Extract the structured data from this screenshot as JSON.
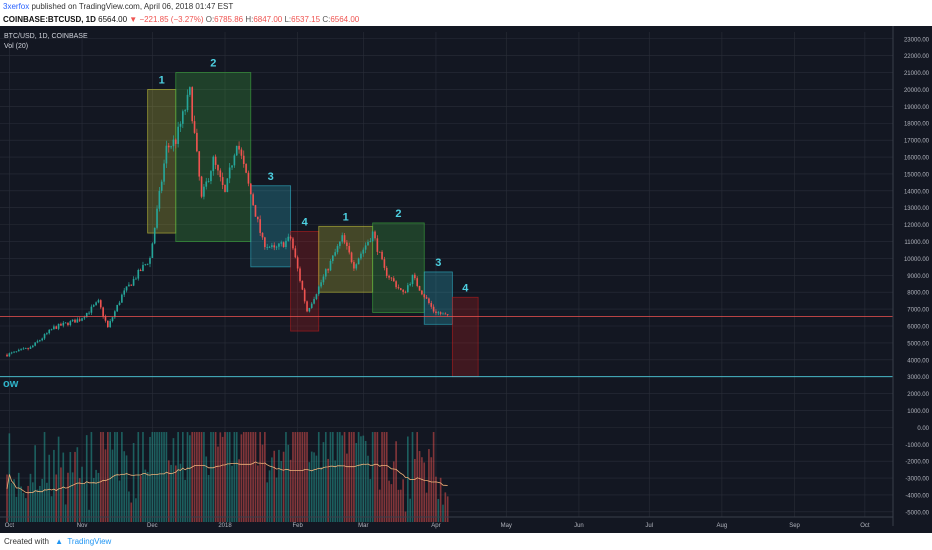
{
  "header": {
    "author": "3xerfox",
    "published_text": "published on TradingView.com, April 06, 2018 01:47 EST"
  },
  "quote": {
    "symbol": "COINBASE:BTCUSD, 1D",
    "last": "6564.00",
    "change": "▼ −221.85 (−3.27%)",
    "open_label": "O:",
    "open": "6785.86",
    "high_label": "H:",
    "high": "6847.00",
    "low_label": "L:",
    "low": "6537.15",
    "close_label": "C:",
    "close": "6564.00"
  },
  "legend": {
    "pair": "BTC/USD, 1D, COINBASE",
    "volume": "Vol (20)",
    "side_label": "ow"
  },
  "footer": {
    "created_with": "Created with",
    "brand": "TradingView"
  },
  "colors": {
    "background": "#131722",
    "up": "#26a69a",
    "down": "#ef5350",
    "grid": "#2a2e39",
    "phase1": "#c5c53a",
    "phase2": "#3fae3f",
    "phase3": "#2fb3c9",
    "phase4": "#b71c1c",
    "price_line": "#ef5350",
    "support_line": "#4dd0e1"
  },
  "chart_data": {
    "type": "candlestick",
    "symbol": "BTC/USD",
    "x_tick_labels": [
      "Oct",
      "Nov",
      "Dec",
      "2018",
      "Feb",
      "Mar",
      "Apr",
      "May",
      "Jun",
      "Jul",
      "Aug",
      "Sep",
      "Oct"
    ],
    "y_ticks": [
      "23000.00",
      "22000.00",
      "21000.00",
      "20000.00",
      "19000.00",
      "18000.00",
      "17000.00",
      "16000.00",
      "15000.00",
      "14000.00",
      "13000.00",
      "12000.00",
      "11000.00",
      "10000.00",
      "9000.00",
      "8000.00",
      "7000.00",
      "6000.00",
      "5000.00",
      "4000.00",
      "3000.00",
      "2000.00",
      "1000.00",
      "0.00",
      "-1000.00",
      "-2000.00",
      "-3000.00",
      "-4000.00",
      "-5000.00"
    ],
    "y_range": [
      -5600,
      23400
    ],
    "last_price": {
      "value": 6564,
      "label": "6564.00"
    },
    "support_level": {
      "value": 3000,
      "label": "3000.00"
    },
    "phases": [
      {
        "label": "1",
        "color_key": "phase1",
        "start": "Nov 29 2017",
        "end": "Dec 11 2017",
        "low": 11500,
        "high": 20000
      },
      {
        "label": "2",
        "color_key": "phase2",
        "start": "Dec 11 2017",
        "end": "Jan 12 2018",
        "low": 11000,
        "high": 21000
      },
      {
        "label": "3",
        "color_key": "phase3",
        "start": "Jan 12 2018",
        "end": "Jan 29 2018",
        "low": 9500,
        "high": 14300
      },
      {
        "label": "4",
        "color_key": "phase4",
        "start": "Jan 29 2018",
        "end": "Feb 10 2018",
        "low": 5700,
        "high": 11600
      },
      {
        "label": "1",
        "color_key": "phase1",
        "start": "Feb 10 2018",
        "end": "Mar 5 2018",
        "low": 8000,
        "high": 11900
      },
      {
        "label": "2",
        "color_key": "phase2",
        "start": "Mar 5 2018",
        "end": "Mar 27 2018",
        "low": 6800,
        "high": 12100
      },
      {
        "label": "3",
        "color_key": "phase3",
        "start": "Mar 27 2018",
        "end": "Apr 8 2018",
        "low": 6100,
        "high": 9200
      },
      {
        "label": "4",
        "color_key": "phase4",
        "start": "Apr 8 2018",
        "end": "Apr 19 2018",
        "low": 3000,
        "high": 7700
      }
    ],
    "price_path": [
      {
        "d": "Sep 30 2017",
        "v": 4300
      },
      {
        "d": "Oct 10 2017",
        "v": 4700
      },
      {
        "d": "Oct 20 2017",
        "v": 5900
      },
      {
        "d": "Oct 31 2017",
        "v": 6400
      },
      {
        "d": "Nov 8 2017",
        "v": 7400
      },
      {
        "d": "Nov 12 2017",
        "v": 5900
      },
      {
        "d": "Nov 18 2017",
        "v": 7800
      },
      {
        "d": "Nov 26 2017",
        "v": 9300
      },
      {
        "d": "Nov 30 2017",
        "v": 10000
      },
      {
        "d": "Dec 7 2017",
        "v": 16500
      },
      {
        "d": "Dec 11 2017",
        "v": 17000
      },
      {
        "d": "Dec 17 2017",
        "v": 19800
      },
      {
        "d": "Dec 22 2017",
        "v": 13500
      },
      {
        "d": "Dec 27 2017",
        "v": 15800
      },
      {
        "d": "Jan 1 2018",
        "v": 13800
      },
      {
        "d": "Jan 6 2018",
        "v": 17000
      },
      {
        "d": "Jan 12 2018",
        "v": 13800
      },
      {
        "d": "Jan 17 2018",
        "v": 11000
      },
      {
        "d": "Jan 22 2018",
        "v": 10500
      },
      {
        "d": "Jan 29 2018",
        "v": 11200
      },
      {
        "d": "Feb 5 2018",
        "v": 6900
      },
      {
        "d": "Feb 10 2018",
        "v": 8300
      },
      {
        "d": "Feb 20 2018",
        "v": 11200
      },
      {
        "d": "Feb 25 2018",
        "v": 9600
      },
      {
        "d": "Mar 5 2018",
        "v": 11500
      },
      {
        "d": "Mar 10 2018",
        "v": 9300
      },
      {
        "d": "Mar 18 2018",
        "v": 7900
      },
      {
        "d": "Mar 22 2018",
        "v": 8900
      },
      {
        "d": "Mar 31 2018",
        "v": 6900
      },
      {
        "d": "Apr 6 2018",
        "v": 6564
      }
    ],
    "volume": {
      "name": "Vol (20)",
      "baseline": -5600,
      "peak": 1500,
      "ma_peak": -2800
    }
  }
}
